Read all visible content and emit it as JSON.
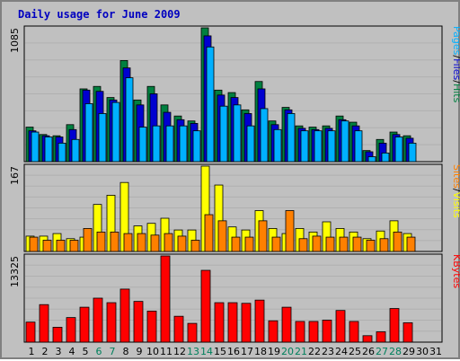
{
  "title": "Daily usage for June 2009",
  "colors": {
    "hits": "#008040",
    "files": "#0000d0",
    "pages": "#00b0ff",
    "visits": "#ffff00",
    "sites": "#ff8000",
    "kbytes": "#ff0000",
    "weekday": "#000000",
    "weekend": "#00805c"
  },
  "chart_data": {
    "type": "bar",
    "x": [
      1,
      2,
      3,
      4,
      5,
      6,
      7,
      8,
      9,
      10,
      11,
      12,
      13,
      14,
      15,
      16,
      17,
      18,
      19,
      20,
      21,
      22,
      23,
      24,
      25,
      26,
      27,
      28,
      29,
      30,
      31
    ],
    "weekend_days": [
      6,
      7,
      13,
      14,
      20,
      21,
      27,
      28
    ],
    "panels": [
      {
        "name": "hits-files-pages",
        "max_label": "1085",
        "ylim": [
          0,
          1085
        ],
        "legend": [
          "Pages",
          "/",
          "Files",
          "/",
          "Hits"
        ],
        "series": [
          {
            "name": "Hits",
            "values": [
              280,
              220,
              210,
              300,
              590,
              610,
              520,
              820,
              500,
              610,
              460,
              370,
              330,
              1085,
              580,
              560,
              420,
              650,
              330,
              440,
              290,
              280,
              290,
              370,
              320,
              90,
              180,
              240,
              210,
              0,
              0
            ]
          },
          {
            "name": "Files",
            "values": [
              250,
              210,
              200,
              260,
              580,
              570,
              500,
              760,
              460,
              550,
              400,
              340,
              310,
              1020,
              540,
              520,
              390,
              590,
              300,
              420,
              270,
              260,
              270,
              340,
              290,
              80,
              150,
              220,
              190,
              0,
              0
            ]
          },
          {
            "name": "Pages",
            "values": [
              240,
              200,
              150,
              180,
              470,
              390,
              480,
              680,
              280,
              290,
              290,
              290,
              250,
              930,
              450,
              460,
              290,
              430,
              260,
              390,
              250,
              250,
              250,
              330,
              250,
              40,
              70,
              200,
              150,
              0,
              0
            ]
          }
        ]
      },
      {
        "name": "visits-sites",
        "max_label": "167",
        "ylim": [
          0,
          167
        ],
        "legend": [
          "Sites",
          "/",
          "Visits"
        ],
        "series": [
          {
            "name": "Visits",
            "values": [
              30,
              30,
              35,
              25,
              28,
              92,
              110,
              135,
              50,
              55,
              65,
              42,
              42,
              167,
              130,
              48,
              42,
              80,
              45,
              35,
              45,
              38,
              58,
              45,
              38,
              25,
              40,
              60,
              35,
              0,
              0
            ]
          },
          {
            "name": "Sites",
            "values": [
              28,
              22,
              22,
              22,
              45,
              38,
              38,
              35,
              35,
              32,
              35,
              30,
              22,
              72,
              60,
              28,
              28,
              60,
              28,
              80,
              25,
              30,
              28,
              28,
              28,
              22,
              25,
              38,
              28,
              0,
              0
            ]
          }
        ]
      },
      {
        "name": "kbytes",
        "max_label": "13325",
        "ylim": [
          0,
          13325
        ],
        "legend": [
          "KBytes"
        ],
        "series": [
          {
            "name": "KBytes",
            "values": [
              3100,
              5800,
              2300,
              3800,
              5400,
              6800,
              6100,
              8200,
              6300,
              4800,
              13325,
              4000,
              2900,
              11100,
              6100,
              6100,
              6000,
              6500,
              3300,
              5400,
              3200,
              3200,
              3400,
              4900,
              3200,
              1000,
              1600,
              5200,
              3000,
              0,
              0
            ]
          }
        ]
      }
    ]
  }
}
